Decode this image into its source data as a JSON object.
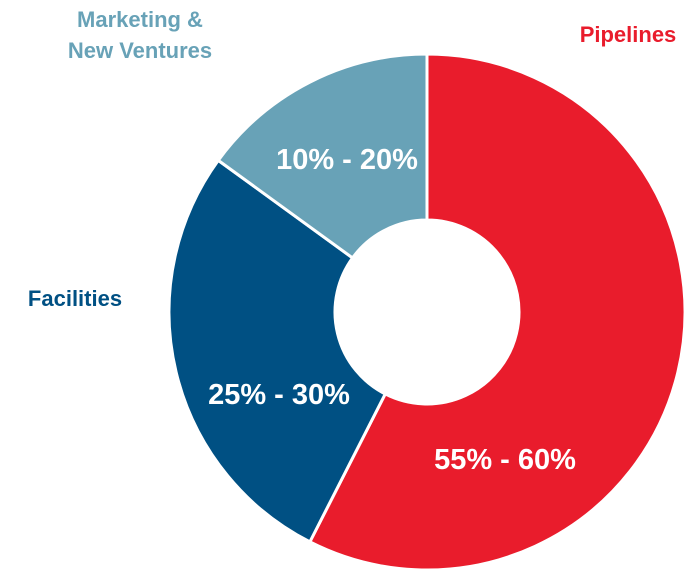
{
  "chart_data": {
    "type": "pie",
    "donut": true,
    "title": "",
    "legend": "none",
    "slices": [
      {
        "label": "Pipelines",
        "label_lines": [
          "Pipelines"
        ],
        "value_text": "55% - 60%",
        "value": 57.5,
        "color": "#e91c2c"
      },
      {
        "label": "Facilities",
        "label_lines": [
          "Facilities"
        ],
        "value_text": "25% - 30%",
        "value": 27.5,
        "color": "#005083"
      },
      {
        "label": "Marketing & New Ventures",
        "label_lines": [
          "Marketing &",
          "New Ventures"
        ],
        "value_text": "10% - 20%",
        "value": 15,
        "color": "#68a2b7"
      }
    ]
  }
}
